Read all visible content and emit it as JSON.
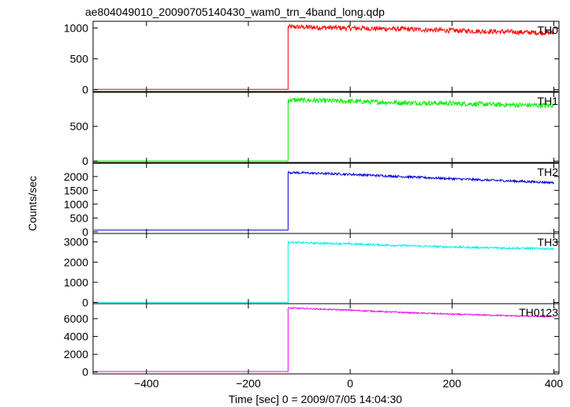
{
  "chart_data": {
    "type": "line",
    "title": "ae804049010_20090705140430_wam0_trn_4band_long.qdp",
    "xlabel": "Time [sec] 0 = 2009/07/05 14:04:30",
    "ylabel": "Counts/sec",
    "xlim": [
      -505,
      410
    ],
    "x_ticks": [
      -400,
      -200,
      0,
      200,
      400
    ],
    "x_tick_labels": [
      "−400",
      "−200",
      "0",
      "200",
      "400"
    ],
    "onset_x": -122,
    "panels": [
      {
        "name": "TH0",
        "color": "#ff0000",
        "ylim": [
          -30,
          1110
        ],
        "yticks": [
          0,
          500,
          1000
        ],
        "ytick_labels": [
          "0",
          "500",
          "1000"
        ],
        "baseline": 4,
        "trend_x": [
          -122,
          0,
          100,
          200,
          300,
          400
        ],
        "trend_y": [
          1020,
          1000,
          985,
          960,
          940,
          920
        ],
        "noise": 40
      },
      {
        "name": "TH1",
        "color": "#00ee00",
        "ylim": [
          -20,
          990
        ],
        "yticks": [
          0,
          500
        ],
        "ytick_labels": [
          "0",
          "500"
        ],
        "baseline": 3,
        "trend_x": [
          -122,
          0,
          100,
          200,
          300,
          400
        ],
        "trend_y": [
          880,
          860,
          840,
          830,
          810,
          800
        ],
        "noise": 35
      },
      {
        "name": "TH2",
        "color": "#0000dd",
        "ylim": [
          -60,
          2480
        ],
        "yticks": [
          0,
          500,
          1000,
          1500,
          2000
        ],
        "ytick_labels": [
          "0",
          "500",
          "1000",
          "1500",
          "2000"
        ],
        "baseline": 60,
        "trend_x": [
          -122,
          0,
          100,
          200,
          300,
          400
        ],
        "trend_y": [
          2150,
          2080,
          2000,
          1920,
          1850,
          1780
        ],
        "noise": 40
      },
      {
        "name": "TH3",
        "color": "#00eeee",
        "ylim": [
          -60,
          3420
        ],
        "yticks": [
          0,
          1000,
          2000,
          3000
        ],
        "ytick_labels": [
          "0",
          "1000",
          "2000",
          "3000"
        ],
        "baseline": 8,
        "trend_x": [
          -122,
          0,
          100,
          200,
          300,
          400
        ],
        "trend_y": [
          2980,
          2900,
          2820,
          2750,
          2700,
          2660
        ],
        "noise": 50
      },
      {
        "name": "TH0123",
        "color": "#ee00ee",
        "ylim": [
          -200,
          7680
        ],
        "yticks": [
          0,
          2000,
          4000,
          6000
        ],
        "ytick_labels": [
          "0",
          "2000",
          "4000",
          "6000"
        ],
        "baseline": 70,
        "trend_x": [
          -122,
          0,
          100,
          200,
          300,
          400
        ],
        "trend_y": [
          7200,
          6950,
          6700,
          6500,
          6350,
          6200
        ],
        "noise": 70
      }
    ]
  }
}
